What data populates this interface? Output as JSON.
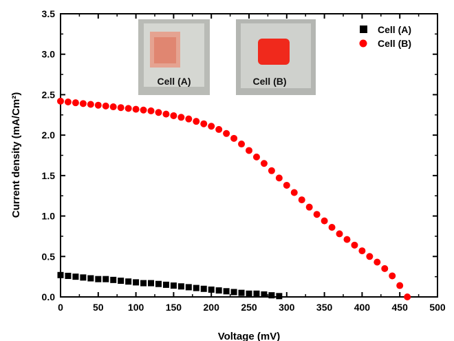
{
  "chart_data": {
    "type": "scatter",
    "xlabel": "Voltage (mV)",
    "ylabel": "Current density (mA/Cm²)",
    "xlim": [
      0,
      500
    ],
    "ylim": [
      0,
      3.5
    ],
    "xticks": [
      "0",
      "50",
      "100",
      "150",
      "200",
      "250",
      "300",
      "350",
      "400",
      "450",
      "500"
    ],
    "yticks": [
      "0.0",
      "0.5",
      "1.0",
      "1.5",
      "2.0",
      "2.5",
      "3.0",
      "3.5"
    ],
    "grid": false,
    "legend_position": "top-right",
    "series": [
      {
        "name": "Cell (A)",
        "marker": "square",
        "color": "#000000",
        "x": [
          0,
          10,
          20,
          30,
          40,
          50,
          60,
          70,
          80,
          90,
          100,
          110,
          120,
          130,
          140,
          150,
          160,
          170,
          180,
          190,
          200,
          210,
          220,
          230,
          240,
          250,
          260,
          270,
          280,
          290
        ],
        "y": [
          0.27,
          0.26,
          0.25,
          0.24,
          0.23,
          0.22,
          0.22,
          0.21,
          0.2,
          0.19,
          0.18,
          0.17,
          0.17,
          0.16,
          0.15,
          0.14,
          0.13,
          0.12,
          0.11,
          0.1,
          0.09,
          0.08,
          0.07,
          0.06,
          0.05,
          0.04,
          0.04,
          0.03,
          0.02,
          0.01
        ]
      },
      {
        "name": "Cell (B)",
        "marker": "circle",
        "color": "#ff0000",
        "x": [
          0,
          10,
          20,
          30,
          40,
          50,
          60,
          70,
          80,
          90,
          100,
          110,
          120,
          130,
          140,
          150,
          160,
          170,
          180,
          190,
          200,
          210,
          220,
          230,
          240,
          250,
          260,
          270,
          280,
          290,
          300,
          310,
          320,
          330,
          340,
          350,
          360,
          370,
          380,
          390,
          400,
          410,
          420,
          430,
          440,
          450,
          460
        ],
        "y": [
          2.42,
          2.41,
          2.4,
          2.39,
          2.38,
          2.37,
          2.36,
          2.35,
          2.34,
          2.33,
          2.32,
          2.31,
          2.3,
          2.28,
          2.26,
          2.24,
          2.22,
          2.2,
          2.17,
          2.14,
          2.11,
          2.07,
          2.02,
          1.96,
          1.89,
          1.81,
          1.73,
          1.65,
          1.56,
          1.47,
          1.38,
          1.29,
          1.2,
          1.11,
          1.02,
          0.94,
          0.86,
          0.78,
          0.71,
          0.64,
          0.57,
          0.5,
          0.43,
          0.35,
          0.26,
          0.14,
          0.0
        ]
      }
    ]
  },
  "insets": [
    {
      "label": "Cell (A)"
    },
    {
      "label": "Cell (B)"
    }
  ]
}
